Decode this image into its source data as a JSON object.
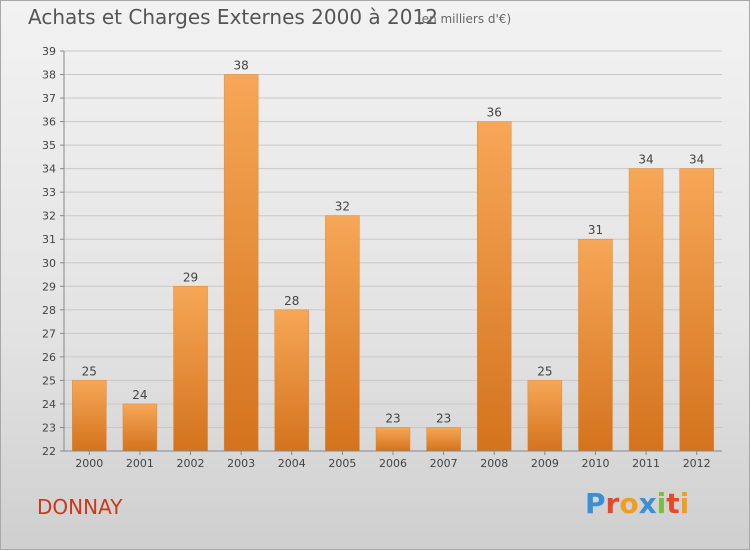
{
  "header": {
    "title": "Achats et Charges Externes 2000 à 2012",
    "subtitle": "(en milliers d'€)"
  },
  "footer": {
    "commune": "DONNAY",
    "logo": "Proxiti",
    "logo_colors": [
      "#3b8fd4",
      "#e8472a",
      "#f39c1f",
      "#3b8fd4",
      "#7bbf3a",
      "#e8472a",
      "#f39c1f"
    ]
  },
  "colors": {
    "bar_light": "#f6a757",
    "bar_dark": "#d4731d",
    "grid": "#c8c8c8",
    "axis_text": "#444444"
  },
  "chart_data": {
    "type": "bar",
    "categories": [
      "2000",
      "2001",
      "2002",
      "2003",
      "2004",
      "2005",
      "2006",
      "2007",
      "2008",
      "2009",
      "2010",
      "2011",
      "2012"
    ],
    "values": [
      25,
      24,
      29,
      38,
      28,
      32,
      23,
      23,
      36,
      25,
      31,
      34,
      34
    ],
    "ylim": [
      22,
      39
    ],
    "yticks": [
      22,
      23,
      24,
      25,
      26,
      27,
      28,
      29,
      30,
      31,
      32,
      33,
      34,
      35,
      36,
      37,
      38,
      39
    ],
    "grid": true,
    "data_labels": true
  }
}
